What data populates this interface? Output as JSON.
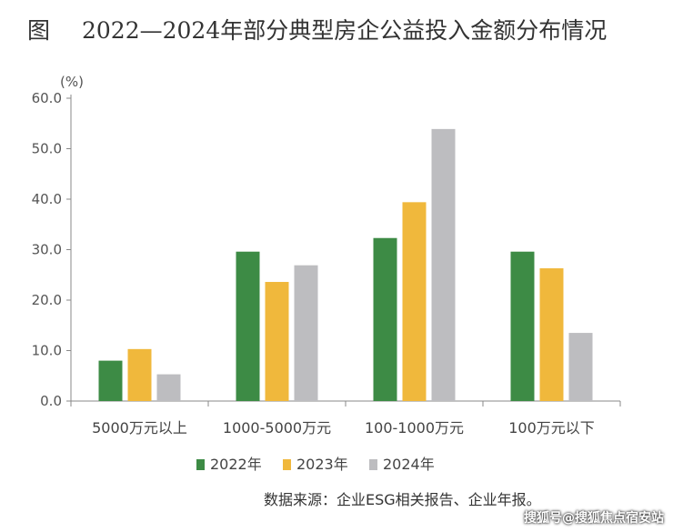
{
  "header": {
    "figure_label": "图",
    "title": "2022—2024年部分典型房企公益投入金额分布情况"
  },
  "chart_data": {
    "type": "bar",
    "ylabel": "(%)",
    "ylim": [
      0,
      60
    ],
    "yticks": [
      "0.0",
      "10.0",
      "20.0",
      "30.0",
      "40.0",
      "50.0",
      "60.0"
    ],
    "categories": [
      "5000万元以上",
      "1000-5000万元",
      "100-1000万元",
      "100万元以下"
    ],
    "series": [
      {
        "name": "2022年",
        "color": "#3d8b45",
        "values": [
          8.0,
          29.6,
          32.3,
          29.6
        ]
      },
      {
        "name": "2023年",
        "color": "#f0b83c",
        "values": [
          10.3,
          23.6,
          39.4,
          26.3
        ]
      },
      {
        "name": "2024年",
        "color": "#bdbdc0",
        "values": [
          5.3,
          26.9,
          53.9,
          13.5
        ]
      }
    ],
    "legend_position": "bottom",
    "grid": false
  },
  "footer": {
    "source": "数据来源：企业ESG相关报告、企业年报。",
    "watermark": "搜狐号@搜狐焦点宿安站"
  }
}
